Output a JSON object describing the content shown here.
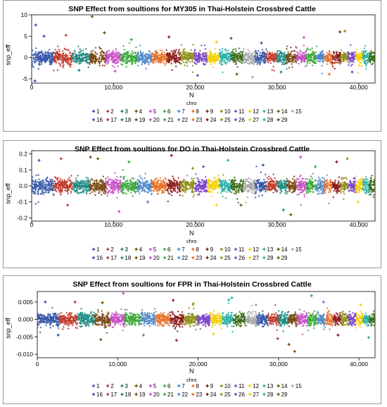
{
  "palette": [
    "#3657a8",
    "#c0392b",
    "#1d8a82",
    "#7a4a14",
    "#c94fc9",
    "#3aa93a",
    "#4f88c6",
    "#e8732a",
    "#8b1c1c",
    "#8f8f1a",
    "#7b45c9",
    "#f4d000",
    "#2bb0a8",
    "#3d6b18",
    "#a8a8a8"
  ],
  "chart_data": [
    {
      "type": "scatter",
      "title": "SNP Effect from soultions for MY305 in Thai-Holstein Crossbred Cattle",
      "xlabel": "N",
      "ylabel": "snp_eff",
      "xlim": [
        0,
        42000
      ],
      "ylim": [
        -6,
        10
      ],
      "xticks": [
        0,
        10000,
        20000,
        30000,
        40000
      ],
      "xtick_labels": [
        "0",
        "10,000",
        "20,000",
        "30,000",
        "40,000"
      ],
      "yticks": [
        -5,
        0,
        5,
        10
      ],
      "ytick_labels": [
        "-5",
        "0",
        "5",
        "10"
      ],
      "noise_sd": 0.75,
      "legend_title": "chro",
      "legend_position": "bottom",
      "series": [
        {
          "name": "1",
          "x_range": [
            1,
            2700
          ]
        },
        {
          "name": "2",
          "x_range": [
            2700,
            5000
          ]
        },
        {
          "name": "3",
          "x_range": [
            5000,
            7100
          ]
        },
        {
          "name": "4",
          "x_range": [
            7100,
            9100
          ]
        },
        {
          "name": "5",
          "x_range": [
            9100,
            10900
          ]
        },
        {
          "name": "6",
          "x_range": [
            10900,
            12900
          ]
        },
        {
          "name": "7",
          "x_range": [
            12900,
            14700
          ]
        },
        {
          "name": "8",
          "x_range": [
            14700,
            16500
          ]
        },
        {
          "name": "9",
          "x_range": [
            16500,
            18200
          ]
        },
        {
          "name": "10",
          "x_range": [
            18200,
            19900
          ]
        },
        {
          "name": "11",
          "x_range": [
            19900,
            21500
          ]
        },
        {
          "name": "12",
          "x_range": [
            21500,
            23000
          ]
        },
        {
          "name": "13",
          "x_range": [
            23000,
            24400
          ]
        },
        {
          "name": "14",
          "x_range": [
            24400,
            25900
          ]
        },
        {
          "name": "15",
          "x_range": [
            25900,
            27300
          ]
        },
        {
          "name": "16",
          "x_range": [
            27300,
            28700
          ]
        },
        {
          "name": "17",
          "x_range": [
            28700,
            30000
          ]
        },
        {
          "name": "18",
          "x_range": [
            30000,
            31200
          ]
        },
        {
          "name": "19",
          "x_range": [
            31200,
            32400
          ]
        },
        {
          "name": "20",
          "x_range": [
            32400,
            33600
          ]
        },
        {
          "name": "21",
          "x_range": [
            33600,
            34800
          ]
        },
        {
          "name": "22",
          "x_range": [
            34800,
            35800
          ]
        },
        {
          "name": "23",
          "x_range": [
            35800,
            36800
          ]
        },
        {
          "name": "24",
          "x_range": [
            36800,
            37800
          ]
        },
        {
          "name": "25",
          "x_range": [
            37800,
            38700
          ]
        },
        {
          "name": "26",
          "x_range": [
            38700,
            39600
          ]
        },
        {
          "name": "27",
          "x_range": [
            39600,
            40500
          ]
        },
        {
          "name": "28",
          "x_range": [
            40500,
            41300
          ]
        },
        {
          "name": "29",
          "x_range": [
            41300,
            42000
          ]
        }
      ],
      "outliers": [
        [
          500,
          7.6
        ],
        [
          400,
          -5.5
        ],
        [
          1500,
          5.0
        ],
        [
          4200,
          5.2
        ],
        [
          7400,
          9.6
        ],
        [
          8900,
          5.8
        ],
        [
          10200,
          -3.2
        ],
        [
          12200,
          4.2
        ],
        [
          16800,
          4.8
        ],
        [
          20300,
          -4.2
        ],
        [
          22600,
          3.6
        ],
        [
          24400,
          4.5
        ],
        [
          27000,
          -4.6
        ],
        [
          28100,
          3.4
        ],
        [
          30500,
          -3.4
        ],
        [
          33300,
          4.7
        ],
        [
          37700,
          6.0
        ],
        [
          38300,
          6.2
        ],
        [
          39200,
          -3.4
        ],
        [
          36400,
          -3.9
        ],
        [
          25100,
          -3.9
        ],
        [
          5800,
          -3.0
        ]
      ]
    },
    {
      "type": "scatter",
      "title": "SNP Effect from soultions for DO in Thai-Holstein Crossbred Cattle",
      "xlabel": "N",
      "ylabel": "snp_eff",
      "xlim": [
        0,
        42000
      ],
      "ylim": [
        -0.22,
        0.22
      ],
      "xticks": [
        0,
        10000,
        20000,
        30000,
        40000
      ],
      "xtick_labels": [
        "0",
        "10,000",
        "20,000",
        "30,000",
        "40,000"
      ],
      "yticks": [
        -0.2,
        -0.1,
        0.0,
        0.1,
        0.2
      ],
      "ytick_labels": [
        "-0.2",
        "-0.1",
        "0.0",
        "0.1",
        "0.2"
      ],
      "noise_sd": 0.022,
      "legend_title": "chro",
      "legend_position": "bottom",
      "series": [
        {
          "name": "1",
          "x_range": [
            1,
            2700
          ]
        },
        {
          "name": "2",
          "x_range": [
            2700,
            5000
          ]
        },
        {
          "name": "3",
          "x_range": [
            5000,
            7100
          ]
        },
        {
          "name": "4",
          "x_range": [
            7100,
            9100
          ]
        },
        {
          "name": "5",
          "x_range": [
            9100,
            10900
          ]
        },
        {
          "name": "6",
          "x_range": [
            10900,
            12900
          ]
        },
        {
          "name": "7",
          "x_range": [
            12900,
            14700
          ]
        },
        {
          "name": "8",
          "x_range": [
            14700,
            16500
          ]
        },
        {
          "name": "9",
          "x_range": [
            16500,
            18200
          ]
        },
        {
          "name": "10",
          "x_range": [
            18200,
            19900
          ]
        },
        {
          "name": "11",
          "x_range": [
            19900,
            21500
          ]
        },
        {
          "name": "12",
          "x_range": [
            21500,
            23000
          ]
        },
        {
          "name": "13",
          "x_range": [
            23000,
            24400
          ]
        },
        {
          "name": "14",
          "x_range": [
            24400,
            25900
          ]
        },
        {
          "name": "15",
          "x_range": [
            25900,
            27300
          ]
        },
        {
          "name": "16",
          "x_range": [
            27300,
            28700
          ]
        },
        {
          "name": "17",
          "x_range": [
            28700,
            30000
          ]
        },
        {
          "name": "18",
          "x_range": [
            30000,
            31200
          ]
        },
        {
          "name": "19",
          "x_range": [
            31200,
            32400
          ]
        },
        {
          "name": "20",
          "x_range": [
            32400,
            33600
          ]
        },
        {
          "name": "21",
          "x_range": [
            33600,
            34800
          ]
        },
        {
          "name": "22",
          "x_range": [
            34800,
            35800
          ]
        },
        {
          "name": "23",
          "x_range": [
            35800,
            36800
          ]
        },
        {
          "name": "24",
          "x_range": [
            36800,
            37800
          ]
        },
        {
          "name": "25",
          "x_range": [
            37800,
            38700
          ]
        },
        {
          "name": "26",
          "x_range": [
            38700,
            39600
          ]
        },
        {
          "name": "27",
          "x_range": [
            39600,
            40500
          ]
        },
        {
          "name": "28",
          "x_range": [
            40500,
            41300
          ]
        },
        {
          "name": "29",
          "x_range": [
            41300,
            42000
          ]
        }
      ],
      "outliers": [
        [
          900,
          0.16
        ],
        [
          3600,
          0.17
        ],
        [
          7200,
          0.18
        ],
        [
          8100,
          0.17
        ],
        [
          10700,
          -0.16
        ],
        [
          11900,
          0.15
        ],
        [
          17100,
          0.19
        ],
        [
          21000,
          0.12
        ],
        [
          24000,
          0.16
        ],
        [
          25600,
          -0.12
        ],
        [
          28300,
          0.13
        ],
        [
          30800,
          -0.15
        ],
        [
          31700,
          -0.18
        ],
        [
          32900,
          0.18
        ],
        [
          34700,
          0.12
        ],
        [
          37300,
          0.15
        ],
        [
          38600,
          0.17
        ],
        [
          39900,
          -0.1
        ],
        [
          4400,
          -0.12
        ],
        [
          14200,
          -0.1
        ],
        [
          22600,
          -0.12
        ],
        [
          19700,
          0.11
        ]
      ]
    },
    {
      "type": "scatter",
      "title": "SNP Effect from soultions for FPR in Thai-Holstein Crossbred Cattle",
      "xlabel": "N",
      "ylabel": "snp_eff",
      "xlim": [
        0,
        42000
      ],
      "ylim": [
        -0.011,
        0.008
      ],
      "xticks": [
        0,
        10000,
        20000,
        30000,
        40000
      ],
      "xtick_labels": [
        "0",
        "10,000",
        "20,000",
        "30,000",
        "40,000"
      ],
      "yticks": [
        -0.01,
        -0.005,
        0.0,
        0.005
      ],
      "ytick_labels": [
        "-0.010",
        "-0.005",
        "0.000",
        "0.005"
      ],
      "noise_sd": 0.0009,
      "legend_title": "chro",
      "legend_position": "bottom",
      "series": [
        {
          "name": "1",
          "x_range": [
            1,
            2700
          ]
        },
        {
          "name": "2",
          "x_range": [
            2700,
            5000
          ]
        },
        {
          "name": "3",
          "x_range": [
            5000,
            7100
          ]
        },
        {
          "name": "4",
          "x_range": [
            7100,
            9100
          ]
        },
        {
          "name": "5",
          "x_range": [
            9100,
            10900
          ]
        },
        {
          "name": "6",
          "x_range": [
            10900,
            12900
          ]
        },
        {
          "name": "7",
          "x_range": [
            12900,
            14700
          ]
        },
        {
          "name": "8",
          "x_range": [
            14700,
            16500
          ]
        },
        {
          "name": "9",
          "x_range": [
            16500,
            18200
          ]
        },
        {
          "name": "10",
          "x_range": [
            18200,
            19900
          ]
        },
        {
          "name": "11",
          "x_range": [
            19900,
            21500
          ]
        },
        {
          "name": "12",
          "x_range": [
            21500,
            23000
          ]
        },
        {
          "name": "13",
          "x_range": [
            23000,
            24400
          ]
        },
        {
          "name": "14",
          "x_range": [
            24400,
            25900
          ]
        },
        {
          "name": "15",
          "x_range": [
            25900,
            27300
          ]
        },
        {
          "name": "16",
          "x_range": [
            27300,
            28700
          ]
        },
        {
          "name": "17",
          "x_range": [
            28700,
            30000
          ]
        },
        {
          "name": "18",
          "x_range": [
            30000,
            31200
          ]
        },
        {
          "name": "19",
          "x_range": [
            31200,
            32400
          ]
        },
        {
          "name": "20",
          "x_range": [
            32400,
            33600
          ]
        },
        {
          "name": "21",
          "x_range": [
            33600,
            34800
          ]
        },
        {
          "name": "22",
          "x_range": [
            34800,
            35800
          ]
        },
        {
          "name": "23",
          "x_range": [
            35800,
            36800
          ]
        },
        {
          "name": "24",
          "x_range": [
            36800,
            37800
          ]
        },
        {
          "name": "25",
          "x_range": [
            37800,
            38700
          ]
        },
        {
          "name": "26",
          "x_range": [
            38700,
            39600
          ]
        },
        {
          "name": "27",
          "x_range": [
            39600,
            40500
          ]
        },
        {
          "name": "28",
          "x_range": [
            40500,
            41300
          ]
        },
        {
          "name": "29",
          "x_range": [
            41300,
            42000
          ]
        }
      ],
      "outliers": [
        [
          10700,
          0.0075
        ],
        [
          1000,
          0.005
        ],
        [
          4700,
          0.005
        ],
        [
          7900,
          -0.0058
        ],
        [
          8100,
          0.0048
        ],
        [
          16900,
          0.0055
        ],
        [
          17300,
          -0.006
        ],
        [
          19400,
          0.0045
        ],
        [
          23800,
          0.0056
        ],
        [
          24200,
          0.0062
        ],
        [
          29900,
          -0.0055
        ],
        [
          31300,
          -0.0072
        ],
        [
          32000,
          -0.0092
        ],
        [
          34100,
          0.0068
        ],
        [
          35600,
          0.005
        ],
        [
          40200,
          0.0042
        ],
        [
          41200,
          -0.0052
        ],
        [
          2600,
          -0.0045
        ],
        [
          13200,
          -0.0045
        ],
        [
          37400,
          -0.0045
        ],
        [
          27200,
          0.0042
        ],
        [
          21900,
          -0.0042
        ]
      ]
    }
  ]
}
